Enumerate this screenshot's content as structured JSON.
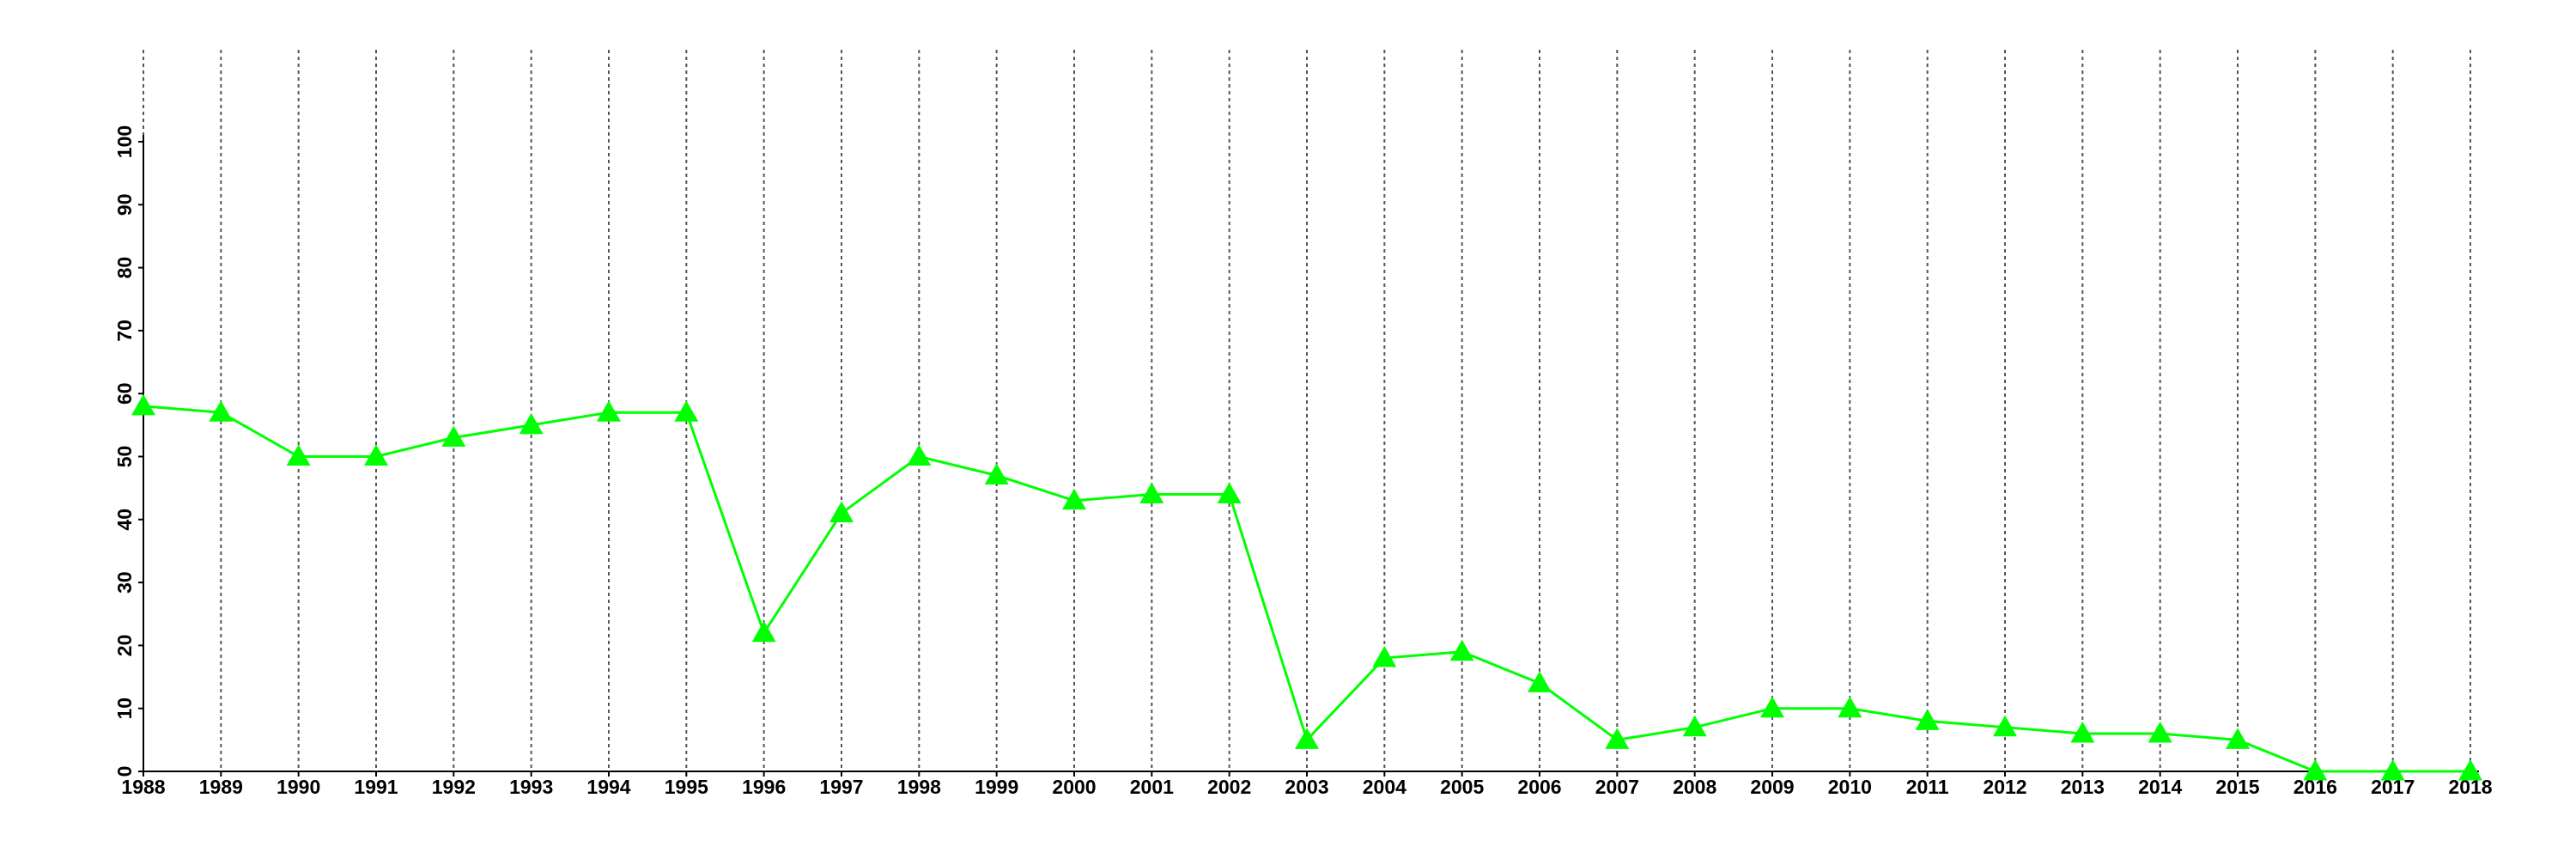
{
  "chart_data": {
    "type": "line",
    "x": [
      1988,
      1989,
      1990,
      1991,
      1992,
      1993,
      1994,
      1995,
      1996,
      1997,
      1998,
      1999,
      2000,
      2001,
      2002,
      2003,
      2004,
      2005,
      2006,
      2007,
      2008,
      2009,
      2010,
      2011,
      2012,
      2013,
      2014,
      2015,
      2016,
      2017,
      2018
    ],
    "series": [
      {
        "color": "#00ff00",
        "values": [
          58,
          57,
          50,
          50,
          53,
          55,
          57,
          57,
          22,
          41,
          50,
          47,
          43,
          44,
          44,
          5,
          18,
          19,
          14,
          5,
          7,
          10,
          10,
          8,
          7,
          6,
          6,
          5,
          0,
          0,
          0
        ]
      }
    ],
    "xlim": [
      1988,
      2018
    ],
    "xticks": [
      1988,
      1989,
      1990,
      1991,
      1992,
      1993,
      1994,
      1995,
      1996,
      1997,
      1998,
      1999,
      2000,
      2001,
      2002,
      2003,
      2004,
      2005,
      2006,
      2007,
      2008,
      2009,
      2010,
      2011,
      2012,
      2013,
      2014,
      2015,
      2016,
      2017,
      2018
    ],
    "ylim": [
      0,
      100
    ],
    "yticks": [
      0,
      10,
      20,
      30,
      40,
      50,
      60,
      70,
      80,
      90,
      100
    ],
    "grid": true,
    "marker": "triangle"
  }
}
